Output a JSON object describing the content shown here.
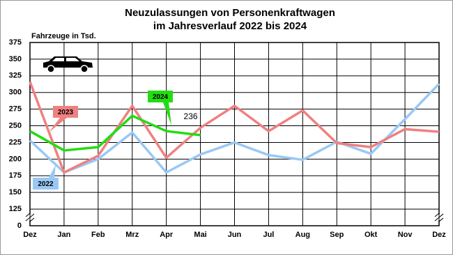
{
  "chart_data": {
    "type": "line",
    "title": [
      "Neuzulassungen von Personenkraftwagen",
      "im Jahresverlauf 2022 bis 2024"
    ],
    "y_label": "Fahrzeuge in Tsd.",
    "categories": [
      "Dez",
      "Jan",
      "Feb",
      "Mrz",
      "Apr",
      "Mai",
      "Jun",
      "Jul",
      "Aug",
      "Sep",
      "Okt",
      "Nov",
      "Dez"
    ],
    "series": [
      {
        "name": "2022",
        "color": "#99c8f5",
        "values": [
          228,
          180,
          200,
          240,
          180,
          207,
          225,
          206,
          199,
          226,
          208,
          260,
          313
        ]
      },
      {
        "name": "2023",
        "color": "#f08080",
        "values": [
          316,
          180,
          205,
          280,
          202,
          247,
          280,
          242,
          273,
          224,
          218,
          245,
          241
        ]
      },
      {
        "name": "2024",
        "color": "#22dd11",
        "values": [
          242,
          213,
          218,
          265,
          242,
          236,
          null,
          null,
          null,
          null,
          null,
          null,
          null
        ],
        "label_last": true
      }
    ],
    "ylim": [
      0,
      375
    ],
    "yticks": [
      0,
      125,
      150,
      175,
      200,
      225,
      250,
      275,
      300,
      325,
      350,
      375
    ],
    "axis_break": true,
    "grid": true
  }
}
